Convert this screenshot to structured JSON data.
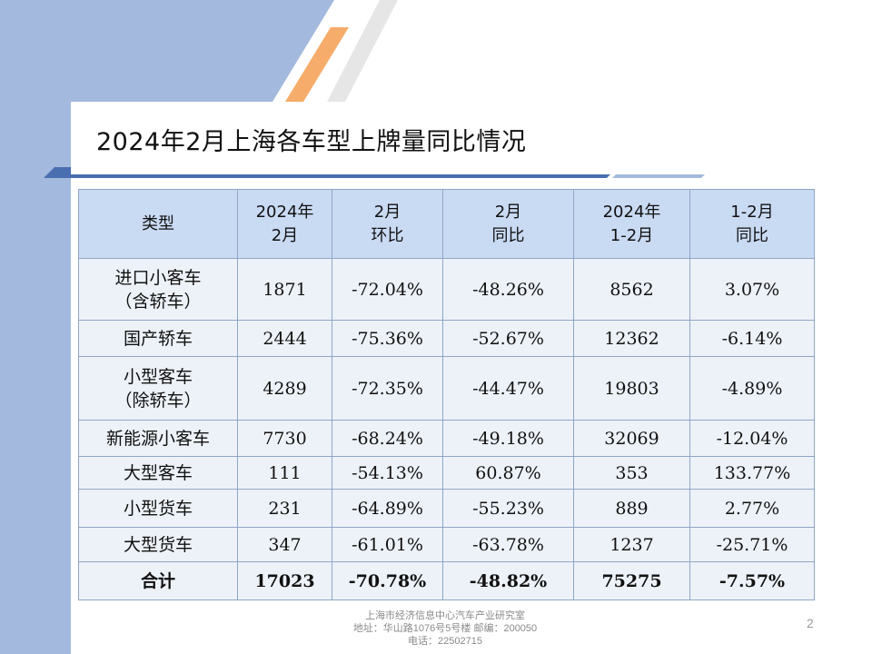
{
  "title": "2024年2月上海各车型上牌量同比情况",
  "table": {
    "headers": [
      [
        "类型"
      ],
      [
        "2024年",
        "2月"
      ],
      [
        "2月",
        "环比"
      ],
      [
        "2月",
        "同比"
      ],
      [
        "2024年",
        "1-2月"
      ],
      [
        "1-2月",
        "同比"
      ]
    ],
    "rows": [
      {
        "type": [
          "进口小客车",
          "（含轿车）"
        ],
        "cells": [
          "1871",
          "-72.04%",
          "-48.26%",
          "8562",
          "3.07%"
        ]
      },
      {
        "type": [
          "国产轿车"
        ],
        "cells": [
          "2444",
          "-75.36%",
          "-52.67%",
          "12362",
          "-6.14%"
        ]
      },
      {
        "type": [
          "小型客车",
          "（除轿车）"
        ],
        "cells": [
          "4289",
          "-72.35%",
          "-44.47%",
          "19803",
          "-4.89%"
        ]
      },
      {
        "type": [
          "新能源小客车"
        ],
        "cells": [
          "7730",
          "-68.24%",
          "-49.18%",
          "32069",
          "-12.04%"
        ]
      },
      {
        "type": [
          "大型客车"
        ],
        "cells": [
          "111",
          "-54.13%",
          "60.87%",
          "353",
          "133.77%"
        ]
      },
      {
        "type": [
          "小型货车"
        ],
        "cells": [
          "231",
          "-64.89%",
          "-55.23%",
          "889",
          "2.77%"
        ]
      },
      {
        "type": [
          "大型货车"
        ],
        "cells": [
          "347",
          "-61.01%",
          "-63.78%",
          "1237",
          "-25.71%"
        ]
      }
    ],
    "total": {
      "type": [
        "合计"
      ],
      "cells": [
        "17023",
        "-70.78%",
        "-48.82%",
        "75275",
        "-7.57%"
      ]
    }
  },
  "footer": {
    "line1": "上海市经济信息中心汽车产业研究室",
    "line2": "地址：华山路1076号5号楼   邮编：200050",
    "line3": "电话：22502715"
  },
  "page_number": "2",
  "colors": {
    "background_blue": "#a3b9dd",
    "stripe_orange": "#f6ac6a",
    "bar_blue": "#4a6fb0",
    "header_fill": "#c9daf3",
    "body_fill": "#edf2f9",
    "border": "#8fa6c6"
  }
}
